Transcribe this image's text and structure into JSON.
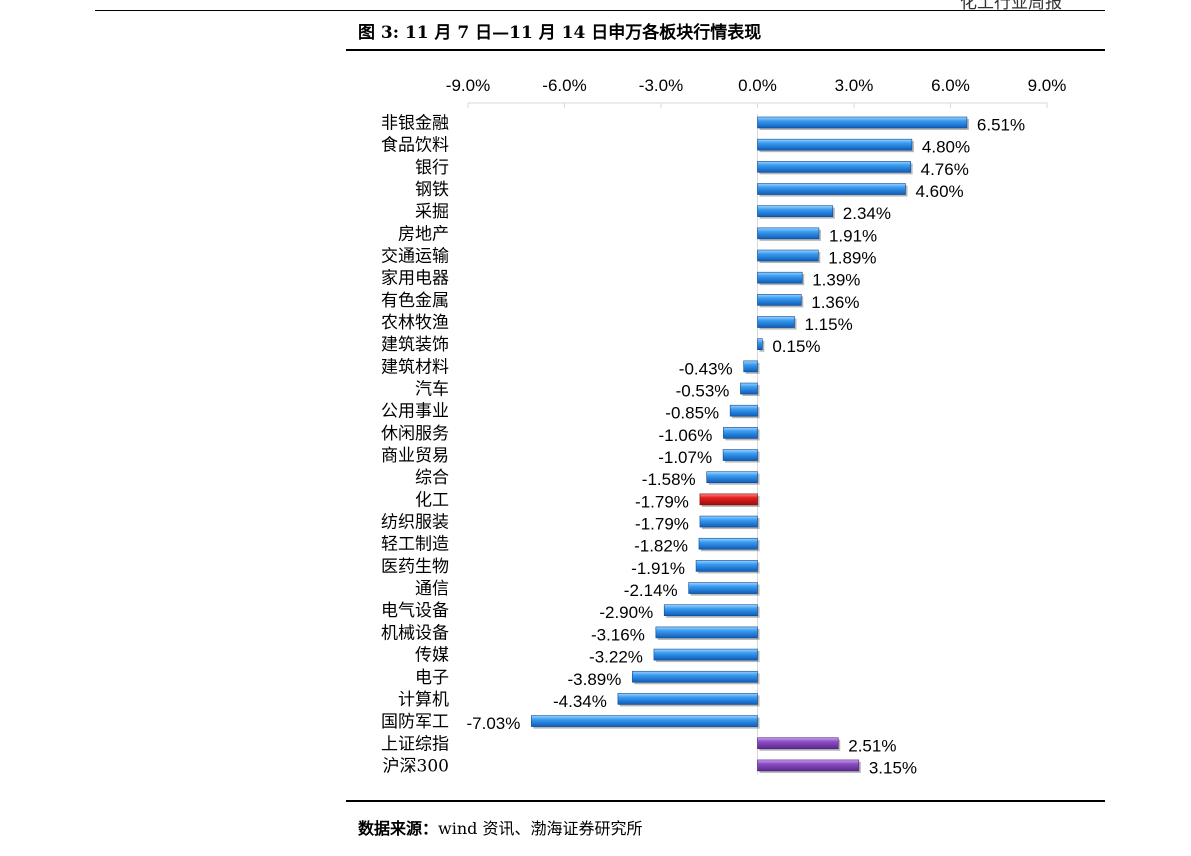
{
  "header": {
    "corner_text": "化工行业周报"
  },
  "figure": {
    "title": "图 3:  11 月 7 日—11 月 14 日申万各板块行情表现",
    "source_label": "数据来源：",
    "source_text": "wind 资讯、渤海证券研究所"
  },
  "colors": {
    "blue": "#2e8fe0",
    "red": "#e3201f",
    "purple": "#8e4ec6"
  },
  "chart_data": {
    "type": "bar",
    "orientation": "horizontal",
    "xlim": [
      -9,
      9
    ],
    "xticks": [
      "-9.0%",
      "-6.0%",
      "-3.0%",
      "0.0%",
      "3.0%",
      "6.0%",
      "9.0%"
    ],
    "categories": [
      "非银金融",
      "食品饮料",
      "银行",
      "钢铁",
      "采掘",
      "房地产",
      "交通运输",
      "家用电器",
      "有色金属",
      "农林牧渔",
      "建筑装饰",
      "建筑材料",
      "汽车",
      "公用事业",
      "休闲服务",
      "商业贸易",
      "综合",
      "化工",
      "纺织服装",
      "轻工制造",
      "医药生物",
      "通信",
      "电气设备",
      "机械设备",
      "传媒",
      "电子",
      "计算机",
      "国防军工",
      "上证综指",
      "沪深300"
    ],
    "values": [
      6.51,
      4.8,
      4.76,
      4.6,
      2.34,
      1.91,
      1.89,
      1.39,
      1.36,
      1.15,
      0.15,
      -0.43,
      -0.53,
      -0.85,
      -1.06,
      -1.07,
      -1.58,
      -1.79,
      -1.79,
      -1.82,
      -1.91,
      -2.14,
      -2.9,
      -3.16,
      -3.22,
      -3.89,
      -4.34,
      -7.03,
      2.51,
      3.15
    ],
    "labels": [
      "6.51%",
      "4.80%",
      "4.76%",
      "4.60%",
      "2.34%",
      "1.91%",
      "1.89%",
      "1.39%",
      "1.36%",
      "1.15%",
      "0.15%",
      "-0.43%",
      "-0.53%",
      "-0.85%",
      "-1.06%",
      "-1.07%",
      "-1.58%",
      "-1.79%",
      "-1.79%",
      "-1.82%",
      "-1.91%",
      "-2.14%",
      "-2.90%",
      "-3.16%",
      "-3.22%",
      "-3.89%",
      "-4.34%",
      "-7.03%",
      "2.51%",
      "3.15%"
    ],
    "highlight": {
      "化工": "red",
      "上证综指": "purple",
      "沪深300": "purple"
    }
  }
}
